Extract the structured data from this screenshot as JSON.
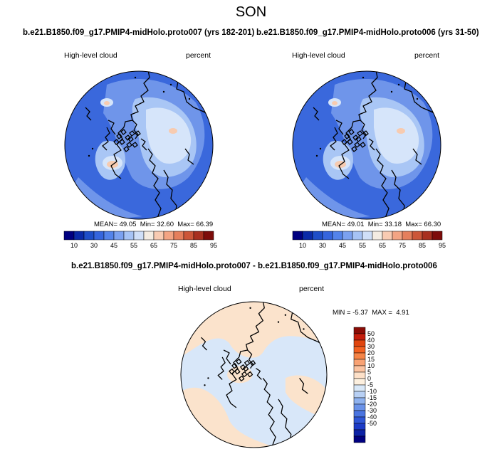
{
  "season": "SON",
  "panels": [
    {
      "title": "b.e21.B1850.f09_g17.PMIP4-midHolo.proto007 (yrs 182-201)",
      "variable": "High-level cloud",
      "units": "percent",
      "stats": {
        "mean_label": "MEAN=",
        "mean": "49.05",
        "min_label": "Min=",
        "min": "32.60",
        "max_label": "Max=",
        "max": "66.39"
      }
    },
    {
      "title": "b.e21.B1850.f09_g17.PMIP4-midHolo.proto006 (yrs 31-50)",
      "variable": "High-level cloud",
      "units": "percent",
      "stats": {
        "mean_label": "MEAN=",
        "mean": "49.01",
        "min_label": "Min=",
        "min": "33.18",
        "max_label": "Max=",
        "max": "66.30"
      }
    }
  ],
  "diff_panel": {
    "title": "b.e21.B1850.f09_g17.PMIP4-midHolo.proto007 - b.e21.B1850.f09_g17.PMIP4-midHolo.proto006",
    "variable": "High-level cloud",
    "units": "percent",
    "stats": {
      "min_label": "MIN =",
      "min": "-5.37",
      "max_label": "MAX =",
      "max": "4.91"
    }
  },
  "abs_colorbar": {
    "colors": [
      "#000080",
      "#0a2aa8",
      "#1e4ec8",
      "#3565dd",
      "#5383ea",
      "#7ba1f0",
      "#a6c3f5",
      "#cfdff8",
      "#f4ece2",
      "#f8cbb2",
      "#f3a483",
      "#e57f5c",
      "#cc5638",
      "#a8301f",
      "#7d0c0a"
    ],
    "tick_labels": [
      "10",
      "30",
      "45",
      "55",
      "65",
      "75",
      "85",
      "95"
    ]
  },
  "diff_colorbar": {
    "colors_top_to_bottom": [
      "#8a0c06",
      "#c41d0c",
      "#e0450e",
      "#f26020",
      "#f58447",
      "#f8a274",
      "#fbc3a1",
      "#fde0c8",
      "#fdf0df",
      "#d9e8f8",
      "#b8d0f4",
      "#8fb2ef",
      "#6a92e8",
      "#4a74e0",
      "#2f56d6",
      "#1c3bc6",
      "#0c22a6",
      "#000080"
    ],
    "tick_labels": [
      "50",
      "40",
      "30",
      "20",
      "15",
      "10",
      "5",
      "0",
      "-5",
      "-10",
      "-15",
      "-20",
      "-30",
      "-40",
      "-50"
    ]
  },
  "map_colors": {
    "ocean_deep": "#3a68dc",
    "mid_blue": "#6f95ea",
    "light_blue": "#a9c6f5",
    "pale": "#d6e5fa",
    "peach": "#f7cbb0",
    "diff_blue": "#d8e7f9",
    "diff_peach": "#fbe3cc",
    "coast": "#000000"
  }
}
